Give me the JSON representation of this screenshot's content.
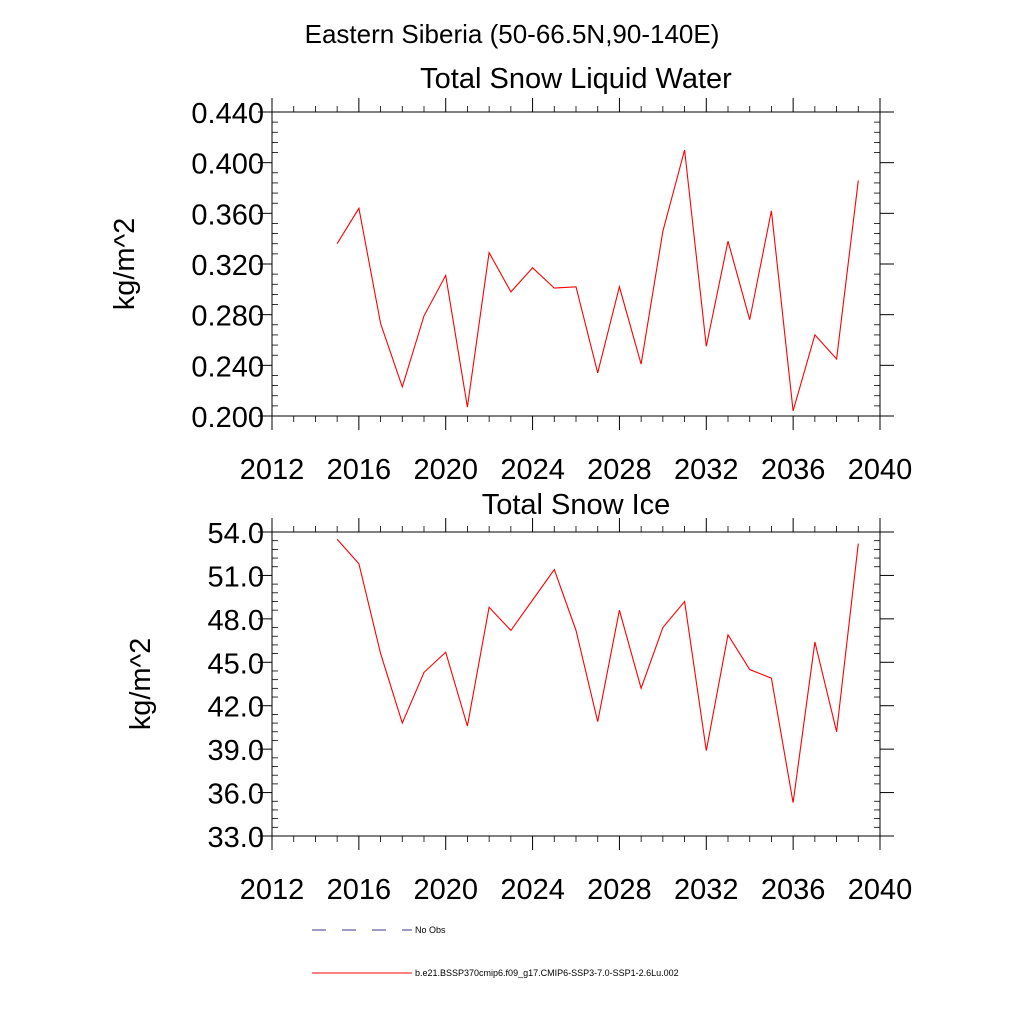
{
  "suptitle": "Eastern Siberia (50-66.5N,90-140E)",
  "legend": {
    "entries": [
      {
        "label": "No Obs",
        "style": "dashed",
        "color": "#3a3a8c"
      },
      {
        "label": "b.e21.BSSP370cmip6.f09_g17.CMIP6-SSP3-7.0-SSP1-2.6Lu.002",
        "style": "solid",
        "color": "#ff0000"
      }
    ]
  },
  "chart_data": [
    {
      "type": "line",
      "title": "Total Snow Liquid Water",
      "xlabel": "",
      "ylabel": "kg/m^2",
      "xlim": [
        2012,
        2040
      ],
      "ylim": [
        0.2,
        0.44
      ],
      "x_ticks": [
        2012,
        2016,
        2020,
        2024,
        2028,
        2032,
        2036,
        2040
      ],
      "x_tick_labels": [
        "2012",
        "2016",
        "2020",
        "2024",
        "2028",
        "2032",
        "2036",
        "2040"
      ],
      "y_ticks": [
        0.2,
        0.24,
        0.28,
        0.32,
        0.36,
        0.4,
        0.44
      ],
      "y_tick_labels": [
        "0.200",
        "0.240",
        "0.280",
        "0.320",
        "0.360",
        "0.400",
        "0.440"
      ],
      "grid": false,
      "series": [
        {
          "color": "#ff0000",
          "x": [
            2015,
            2016,
            2017,
            2018,
            2019,
            2020,
            2021,
            2022,
            2023,
            2024,
            2025,
            2026,
            2027,
            2028,
            2029,
            2030,
            2031,
            2032,
            2033,
            2034,
            2035,
            2036,
            2037,
            2038,
            2039
          ],
          "values": [
            0.336,
            0.364,
            0.273,
            0.223,
            0.279,
            0.311,
            0.207,
            0.329,
            0.298,
            0.317,
            0.301,
            0.302,
            0.234,
            0.302,
            0.241,
            0.346,
            0.41,
            0.255,
            0.338,
            0.276,
            0.362,
            0.204,
            0.264,
            0.245,
            0.386
          ]
        }
      ]
    },
    {
      "type": "line",
      "title": "Total Snow Ice",
      "xlabel": "",
      "ylabel": "kg/m^2",
      "xlim": [
        2012,
        2040
      ],
      "ylim": [
        33.0,
        54.0
      ],
      "x_ticks": [
        2012,
        2016,
        2020,
        2024,
        2028,
        2032,
        2036,
        2040
      ],
      "x_tick_labels": [
        "2012",
        "2016",
        "2020",
        "2024",
        "2028",
        "2032",
        "2036",
        "2040"
      ],
      "y_ticks": [
        33,
        36,
        39,
        42,
        45,
        48,
        51,
        54
      ],
      "y_tick_labels": [
        "33.0",
        "36.0",
        "39.0",
        "42.0",
        "45.0",
        "48.0",
        "51.0",
        "54.0"
      ],
      "grid": false,
      "series": [
        {
          "color": "#ff0000",
          "x": [
            2015,
            2016,
            2017,
            2018,
            2019,
            2020,
            2021,
            2022,
            2023,
            2024,
            2025,
            2026,
            2027,
            2028,
            2029,
            2030,
            2031,
            2032,
            2033,
            2034,
            2035,
            2036,
            2037,
            2038,
            2039
          ],
          "values": [
            53.5,
            51.8,
            45.6,
            40.8,
            44.3,
            45.7,
            40.6,
            48.8,
            47.2,
            49.3,
            51.4,
            47.2,
            40.9,
            48.6,
            43.2,
            47.4,
            49.2,
            38.9,
            46.9,
            44.5,
            43.9,
            35.3,
            46.4,
            40.2,
            53.2
          ]
        }
      ]
    }
  ]
}
